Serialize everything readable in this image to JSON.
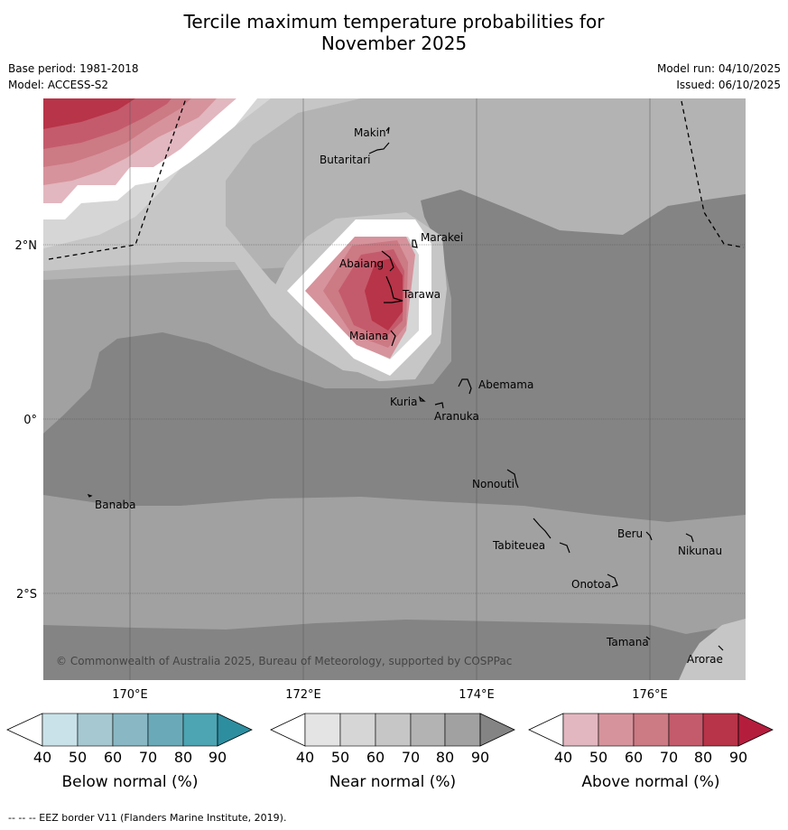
{
  "title_line1": "Tercile maximum temperature probabilities for",
  "title_line2": "November 2025",
  "meta": {
    "base_period": "Base period: 1981-2018",
    "model": "Model: ACCESS-S2",
    "model_run": "Model run: 04/10/2025",
    "issued": "Issued: 06/10/2025"
  },
  "axes": {
    "lon_ticks": [
      "170°E",
      "172°E",
      "174°E",
      "176°E"
    ],
    "lat_ticks": [
      "2°N",
      "0°",
      "2°S"
    ]
  },
  "places": [
    {
      "name": "Makin"
    },
    {
      "name": "Butaritari"
    },
    {
      "name": "Marakei"
    },
    {
      "name": "Abaiang"
    },
    {
      "name": "Tarawa"
    },
    {
      "name": "Maiana"
    },
    {
      "name": "Abemama"
    },
    {
      "name": "Kuria"
    },
    {
      "name": "Aranuka"
    },
    {
      "name": "Nonouti"
    },
    {
      "name": "Banaba"
    },
    {
      "name": "Beru"
    },
    {
      "name": "Tabiteuea"
    },
    {
      "name": "Nikunau"
    },
    {
      "name": "Onotoa"
    },
    {
      "name": "Tamana"
    },
    {
      "name": "Arorae"
    }
  ],
  "copyright": "© Commonwealth of Australia 2025, Bureau of Meteorology, supported by COSPPac",
  "legends": [
    {
      "label": "Below normal (%)",
      "ticks": [
        "40",
        "50",
        "60",
        "70",
        "80",
        "90"
      ],
      "colors": [
        "#ffffff",
        "#c9e1e8",
        "#a6c8d0",
        "#89b8c4",
        "#6aaab8",
        "#4da4b2",
        "#2d8ea0"
      ]
    },
    {
      "label": "Near normal (%)",
      "ticks": [
        "40",
        "50",
        "60",
        "70",
        "80",
        "90"
      ],
      "colors": [
        "#ffffff",
        "#e4e4e4",
        "#d6d6d6",
        "#c6c6c6",
        "#b3b3b3",
        "#a1a1a1",
        "#848484"
      ]
    },
    {
      "label": "Above normal (%)",
      "ticks": [
        "40",
        "50",
        "60",
        "70",
        "80",
        "90"
      ],
      "colors": [
        "#ffffff",
        "#e2b7bf",
        "#d6939c",
        "#cc7a84",
        "#c45b6c",
        "#b83448",
        "#b51d3d"
      ]
    }
  ],
  "footer": "--  --  -- EEZ border V11 (Flanders Marine Institute, 2019).",
  "colors": {
    "near_90": "#848484",
    "near_80": "#a1a1a1",
    "near_70": "#b3b3b3",
    "near_60": "#c6c6c6",
    "near_50": "#d6d6d6",
    "near_40": "#ffffff",
    "above_50": "#e2b7bf",
    "above_60": "#d6939c",
    "above_70": "#cc7a84",
    "above_80": "#c45b6c",
    "above_90": "#b83448"
  }
}
